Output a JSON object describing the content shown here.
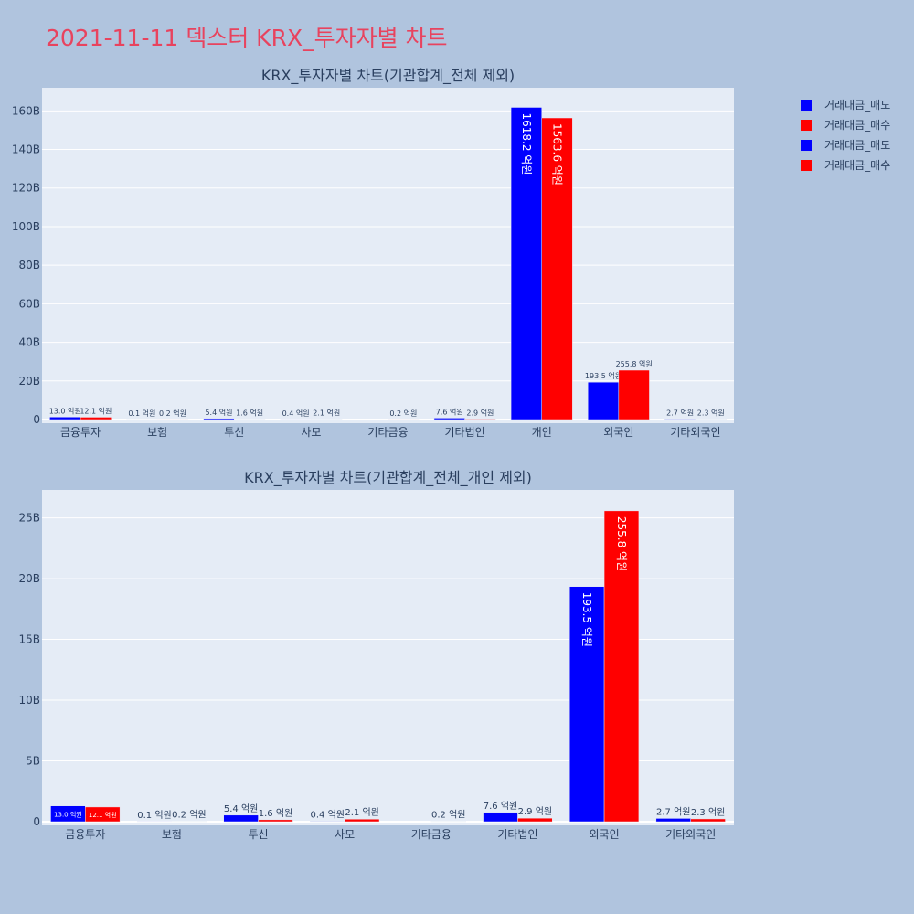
{
  "title": "2021-11-11 덱스터 KRX_투자자별 차트",
  "legend": [
    {
      "label": "거래대금_매도",
      "color": "#0000ff"
    },
    {
      "label": "거래대금_매수",
      "color": "#ff0000"
    },
    {
      "label": "거래대금_매도",
      "color": "#0000ff"
    },
    {
      "label": "거래대금_매수",
      "color": "#ff0000"
    }
  ],
  "chart_data": [
    {
      "type": "bar",
      "title": "KRX_투자자별 차트(기관합계_전체 제외)",
      "categories": [
        "금융투자",
        "보험",
        "투신",
        "사모",
        "기타금융",
        "기타법인",
        "개인",
        "외국인",
        "기타외국인"
      ],
      "series": [
        {
          "name": "거래대금_매도",
          "color": "#0000ff",
          "values": [
            1.3,
            0.01,
            0.54,
            0.04,
            0,
            0.76,
            161.82,
            19.35,
            0.27
          ],
          "labels": [
            "13.0 억원",
            "0.1 억원",
            "5.4 억원",
            "0.4 억원",
            "",
            "7.6 억원",
            "1618.2 억원",
            "193.5 억원",
            "2.7 억원"
          ]
        },
        {
          "name": "거래대금_매수",
          "color": "#ff0000",
          "values": [
            1.21,
            0.02,
            0.16,
            0.21,
            0.02,
            0.29,
            156.36,
            25.58,
            0.23
          ],
          "labels": [
            "12.1 억원",
            "0.2 억원",
            "1.6 억원",
            "2.1 억원",
            "0.2 억원",
            "2.9 억원",
            "1563.6 억원",
            "255.8 억원",
            "2.3 억원"
          ]
        }
      ],
      "ylim": [
        0,
        172
      ],
      "yticks": [
        0,
        20,
        40,
        60,
        80,
        100,
        120,
        140,
        160
      ],
      "ytick_labels": [
        "0",
        "20B",
        "40B",
        "60B",
        "80B",
        "100B",
        "120B",
        "140B",
        "160B"
      ]
    },
    {
      "type": "bar",
      "title": "KRX_투자자별 차트(기관합계_전체_개인 제외)",
      "categories": [
        "금융투자",
        "보험",
        "투신",
        "사모",
        "기타금융",
        "기타법인",
        "외국인",
        "기타외국인"
      ],
      "series": [
        {
          "name": "거래대금_매도",
          "color": "#0000ff",
          "values": [
            1.3,
            0.01,
            0.54,
            0.04,
            0,
            0.76,
            19.35,
            0.27
          ],
          "labels": [
            "13.0 억원",
            "0.1 억원",
            "5.4 억원",
            "0.4 억원",
            "",
            "7.6 억원",
            "193.5 억원",
            "2.7 억원"
          ]
        },
        {
          "name": "거래대금_매수",
          "color": "#ff0000",
          "values": [
            1.21,
            0.02,
            0.16,
            0.21,
            0.02,
            0.29,
            25.58,
            0.23
          ],
          "labels": [
            "12.1 억원",
            "0.2 억원",
            "1.6 억원",
            "2.1 억원",
            "0.2 억원",
            "2.9 억원",
            "255.8 억원",
            "2.3 억원"
          ]
        }
      ],
      "ylim": [
        0,
        27.3
      ],
      "yticks": [
        0,
        5,
        10,
        15,
        20,
        25
      ],
      "ytick_labels": [
        "0",
        "5B",
        "10B",
        "15B",
        "20B",
        "25B"
      ]
    }
  ]
}
